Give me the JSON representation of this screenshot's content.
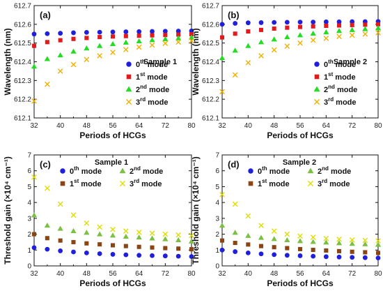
{
  "chart_data": [
    {
      "panel_label": "(a)",
      "sample_label": "Sample 1",
      "type": "scatter",
      "x_label": "Periods of HCGs",
      "y_label": "Wavelength (nm)",
      "x_ticks": [
        "32",
        "40",
        "48",
        "56",
        "64",
        "72",
        "80"
      ],
      "y_ticks": [
        "612.1",
        "612.2",
        "612.3",
        "612.4",
        "612.5",
        "612.6",
        "612.7"
      ],
      "xlim": [
        32,
        80
      ],
      "ylim": [
        612.1,
        612.7
      ],
      "legend_position": "center-right",
      "x": [
        32,
        36,
        40,
        44,
        48,
        52,
        56,
        60,
        64,
        68,
        72,
        76,
        80
      ],
      "series": [
        {
          "name": "0th mode",
          "name_base": "0",
          "name_sup": "th",
          "name_rest": " mode",
          "color": "#1f1fdc",
          "marker": "circle",
          "values": [
            612.548,
            612.55,
            612.552,
            612.555,
            612.557,
            612.558,
            612.559,
            612.56,
            612.561,
            612.562,
            612.563,
            612.564,
            612.565
          ]
        },
        {
          "name": "1st mode",
          "name_base": "1",
          "name_sup": "st",
          "name_rest": " mode",
          "color": "#e31a1c",
          "marker": "square",
          "values": [
            612.485,
            612.505,
            612.515,
            612.522,
            612.527,
            612.532,
            612.535,
            612.537,
            612.539,
            612.541,
            612.543,
            612.545,
            612.547
          ]
        },
        {
          "name": "2nd mode",
          "name_base": "2",
          "name_sup": "nd",
          "name_rest": " mode",
          "color": "#22dd22",
          "marker": "triangle",
          "values": [
            612.375,
            612.415,
            612.435,
            612.455,
            612.472,
            612.485,
            612.495,
            612.503,
            612.51,
            612.516,
            612.521,
            612.526,
            612.53
          ]
        },
        {
          "name": "3rd mode",
          "name_base": "3",
          "name_sup": "rd",
          "name_rest": " mode",
          "color": "#f0b000",
          "marker": "x",
          "values": [
            612.19,
            612.28,
            612.35,
            612.385,
            612.412,
            612.432,
            612.45,
            612.465,
            612.478,
            612.489,
            612.498,
            612.505,
            612.512
          ]
        }
      ]
    },
    {
      "panel_label": "(b)",
      "sample_label": "Sample 2",
      "type": "scatter",
      "x_label": "Periods of HCGs",
      "y_label": "Wavelength (nm)",
      "x_ticks": [
        "32",
        "40",
        "48",
        "56",
        "64",
        "72",
        "80"
      ],
      "y_ticks": [
        "612.1",
        "612.2",
        "612.3",
        "612.4",
        "612.5",
        "612.6",
        "612.7"
      ],
      "xlim": [
        32,
        80
      ],
      "ylim": [
        612.1,
        612.7
      ],
      "legend_position": "lower-right",
      "x": [
        32,
        36,
        40,
        44,
        48,
        52,
        56,
        60,
        64,
        68,
        72,
        76,
        80
      ],
      "series": [
        {
          "name": "0th mode",
          "name_base": "0",
          "name_sup": "th",
          "name_rest": " mode",
          "color": "#1f1fdc",
          "marker": "circle",
          "values": [
            612.6,
            612.605,
            612.608,
            612.609,
            612.61,
            612.611,
            612.612,
            612.612,
            612.613,
            612.613,
            612.614,
            612.614,
            612.615
          ]
        },
        {
          "name": "1st mode",
          "name_base": "1",
          "name_sup": "st",
          "name_rest": " mode",
          "color": "#e31a1c",
          "marker": "square",
          "values": [
            612.53,
            612.55,
            612.562,
            612.57,
            612.577,
            612.582,
            612.586,
            612.589,
            612.592,
            612.594,
            612.596,
            612.598,
            612.6
          ]
        },
        {
          "name": "2nd mode",
          "name_base": "2",
          "name_sup": "nd",
          "name_rest": " mode",
          "color": "#22dd22",
          "marker": "triangle",
          "values": [
            612.42,
            612.46,
            612.485,
            612.505,
            612.52,
            612.532,
            612.542,
            612.551,
            612.558,
            612.565,
            612.57,
            612.575,
            612.58
          ]
        },
        {
          "name": "3rd mode",
          "name_base": "3",
          "name_sup": "rd",
          "name_rest": " mode",
          "color": "#f0b000",
          "marker": "x",
          "values": [
            612.24,
            612.33,
            612.395,
            612.432,
            612.463,
            612.483,
            612.5,
            612.515,
            612.525,
            612.535,
            612.542,
            612.548,
            612.555
          ]
        }
      ]
    },
    {
      "panel_label": "(c)",
      "sample_label": "Sample 1",
      "type": "scatter",
      "x_label": "Periods of HCGs",
      "y_label": "Threshold gain (×10⁴ cm⁻¹)",
      "x_ticks": [
        "32",
        "40",
        "48",
        "56",
        "64",
        "72",
        "80"
      ],
      "y_ticks": [
        "0",
        "1",
        "2",
        "3",
        "4",
        "5",
        "6",
        "7"
      ],
      "xlim": [
        32,
        80
      ],
      "ylim": [
        0,
        7
      ],
      "legend_position": "top",
      "x": [
        32,
        36,
        40,
        44,
        48,
        52,
        56,
        60,
        64,
        68,
        72,
        76,
        80
      ],
      "series": [
        {
          "name": "0th mode",
          "name_base": "0",
          "name_sup": "th",
          "name_rest": " mode",
          "color": "#1f1fdc",
          "marker": "circle",
          "values": [
            1.15,
            1.05,
            0.95,
            0.88,
            0.82,
            0.77,
            0.73,
            0.7,
            0.67,
            0.65,
            0.63,
            0.61,
            0.59
          ]
        },
        {
          "name": "1st mode",
          "name_base": "1",
          "name_sup": "st",
          "name_rest": " mode",
          "color": "#8b4513",
          "marker": "square",
          "values": [
            2.0,
            1.75,
            1.6,
            1.5,
            1.42,
            1.36,
            1.3,
            1.25,
            1.2,
            1.16,
            1.12,
            1.09,
            1.05
          ]
        },
        {
          "name": "2nd mode",
          "name_base": "2",
          "name_sup": "nd",
          "name_rest": " mode",
          "color": "#7bc043",
          "marker": "triangle",
          "values": [
            3.2,
            2.55,
            2.35,
            2.2,
            2.1,
            2.0,
            1.92,
            1.85,
            1.8,
            1.74,
            1.69,
            1.63,
            1.55
          ]
        },
        {
          "name": "3rd mode",
          "name_base": "3",
          "name_sup": "rd",
          "name_rest": " mode",
          "color": "#dddd00",
          "marker": "x",
          "values": [
            5.6,
            4.9,
            3.9,
            3.2,
            2.7,
            2.45,
            2.3,
            2.2,
            2.12,
            2.06,
            2.0,
            1.95,
            1.92
          ]
        }
      ]
    },
    {
      "panel_label": "(d)",
      "sample_label": "Sample 2",
      "type": "scatter",
      "x_label": "Periods of HCGs",
      "y_label": "Threshold gain (×10⁴ cm⁻¹)",
      "x_ticks": [
        "32",
        "40",
        "48",
        "56",
        "64",
        "72",
        "80"
      ],
      "y_ticks": [
        "0",
        "1",
        "2",
        "3",
        "4",
        "5",
        "6",
        "7"
      ],
      "xlim": [
        32,
        80
      ],
      "ylim": [
        0,
        7
      ],
      "legend_position": "top",
      "x": [
        32,
        36,
        40,
        44,
        48,
        52,
        56,
        60,
        64,
        68,
        72,
        76,
        80
      ],
      "series": [
        {
          "name": "0th mode",
          "name_base": "0",
          "name_sup": "th",
          "name_rest": " mode",
          "color": "#1f1fdc",
          "marker": "circle",
          "values": [
            1.0,
            0.9,
            0.82,
            0.76,
            0.71,
            0.67,
            0.64,
            0.61,
            0.58,
            0.56,
            0.54,
            0.52,
            0.5
          ]
        },
        {
          "name": "1st mode",
          "name_base": "1",
          "name_sup": "st",
          "name_rest": " mode",
          "color": "#8b4513",
          "marker": "square",
          "values": [
            1.6,
            1.45,
            1.35,
            1.25,
            1.18,
            1.12,
            1.06,
            1.01,
            0.97,
            0.93,
            0.89,
            0.86,
            0.82
          ]
        },
        {
          "name": "2nd mode",
          "name_base": "2",
          "name_sup": "nd",
          "name_rest": " mode",
          "color": "#7bc043",
          "marker": "triangle",
          "values": [
            2.55,
            2.1,
            1.9,
            1.78,
            1.7,
            1.63,
            1.57,
            1.52,
            1.48,
            1.44,
            1.4,
            1.37,
            1.34
          ]
        },
        {
          "name": "3rd mode",
          "name_base": "3",
          "name_sup": "rd",
          "name_rest": " mode",
          "color": "#dddd00",
          "marker": "x",
          "values": [
            4.5,
            3.9,
            3.15,
            2.55,
            2.2,
            2.0,
            1.88,
            1.8,
            1.73,
            1.68,
            1.64,
            1.61,
            1.58
          ]
        }
      ]
    }
  ]
}
